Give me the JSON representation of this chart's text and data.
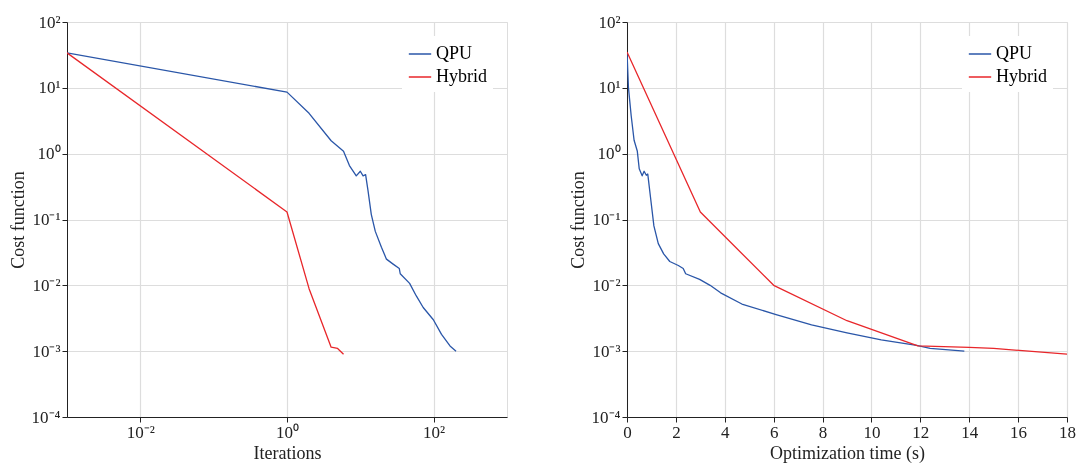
{
  "chart_data": [
    {
      "type": "line",
      "xlabel": "Iterations",
      "ylabel": "Cost function",
      "log": "xy",
      "grid": true,
      "legend": "top right",
      "marker": "none",
      "line_style": "solid",
      "xlim": [
        0.001,
        1000
      ],
      "xticks": [
        {
          "value": 0.01,
          "label": "10⁻²"
        },
        {
          "value": 1,
          "label": "10⁰"
        },
        {
          "value": 100,
          "label": "10²"
        }
      ],
      "ylim": [
        0.0001,
        100
      ],
      "yticks": [
        {
          "value": 0.0001,
          "label": "10⁻⁴"
        },
        {
          "value": 0.001,
          "label": "10⁻³"
        },
        {
          "value": 0.01,
          "label": "10⁻²"
        },
        {
          "value": 0.1,
          "label": "10⁻¹"
        },
        {
          "value": 1,
          "label": "10⁰"
        },
        {
          "value": 10,
          "label": "10¹"
        },
        {
          "value": 100,
          "label": "10²"
        }
      ],
      "series": [
        {
          "name": "QPU",
          "color": "#2a56a8",
          "x": [
            0.001,
            1,
            2.0,
            4.0,
            5.9,
            7.1,
            8.8,
            10,
            10.9,
            11.8,
            12.7,
            14.1,
            16.0,
            19.4,
            22.7,
            28,
            34,
            35,
            47,
            58,
            72,
            99,
            128,
            167,
            202
          ],
          "values": [
            34,
            8.6,
            4.1,
            1.57,
            1.09,
            0.66,
            0.46,
            0.54,
            0.46,
            0.48,
            0.28,
            0.12,
            0.066,
            0.038,
            0.025,
            0.021,
            0.018,
            0.015,
            0.0107,
            0.0069,
            0.0046,
            0.003,
            0.0018,
            0.0012,
            0.001
          ]
        },
        {
          "name": "Hybrid",
          "color": "#e8262a",
          "x": [
            0.001,
            1,
            2.0,
            4.0,
            4.9,
            5.9
          ],
          "values": [
            34,
            0.13,
            0.0089,
            0.00115,
            0.0011,
            0.0009
          ]
        }
      ]
    },
    {
      "type": "line",
      "xlabel": "Optimization time (s)",
      "ylabel": "Cost function",
      "log": "y",
      "grid": true,
      "legend": "top right",
      "marker": "none",
      "line_style": "solid",
      "xlim": [
        0,
        18
      ],
      "xticks": [
        0,
        2,
        4,
        6,
        8,
        10,
        12,
        14,
        16,
        18
      ],
      "ylim": [
        0.0001,
        100
      ],
      "yticks": [
        {
          "value": 0.0001,
          "label": "10⁻⁴"
        },
        {
          "value": 0.001,
          "label": "10⁻³"
        },
        {
          "value": 0.01,
          "label": "10⁻²"
        },
        {
          "value": 0.1,
          "label": "10⁻¹"
        },
        {
          "value": 1,
          "label": "10⁰"
        },
        {
          "value": 10,
          "label": "10¹"
        },
        {
          "value": 100,
          "label": "10²"
        }
      ],
      "series": [
        {
          "name": "QPU",
          "color": "#2a56a8",
          "x": [
            0,
            0.06,
            0.17,
            0.29,
            0.42,
            0.5,
            0.62,
            0.7,
            0.79,
            0.85,
            0.96,
            1.1,
            1.28,
            1.5,
            1.75,
            2.1,
            2.3,
            2.4,
            2.97,
            3.4,
            3.83,
            4.7,
            6.1,
            7.55,
            9.0,
            10.4,
            11.85,
            12.4,
            13.8
          ],
          "values": [
            35,
            10,
            3.8,
            1.6,
            1.1,
            0.59,
            0.46,
            0.54,
            0.47,
            0.49,
            0.22,
            0.08,
            0.043,
            0.03,
            0.023,
            0.02,
            0.018,
            0.015,
            0.0123,
            0.01,
            0.0077,
            0.0052,
            0.0036,
            0.0025,
            0.0019,
            0.00148,
            0.00122,
            0.0011,
            0.001
          ]
        },
        {
          "name": "Hybrid",
          "color": "#e8262a",
          "x": [
            0,
            3.0,
            6.0,
            9.0,
            11.9,
            14,
            15,
            18
          ],
          "values": [
            35,
            0.13,
            0.01,
            0.0029,
            0.0012,
            0.00114,
            0.0011,
            0.0009
          ]
        }
      ]
    }
  ]
}
